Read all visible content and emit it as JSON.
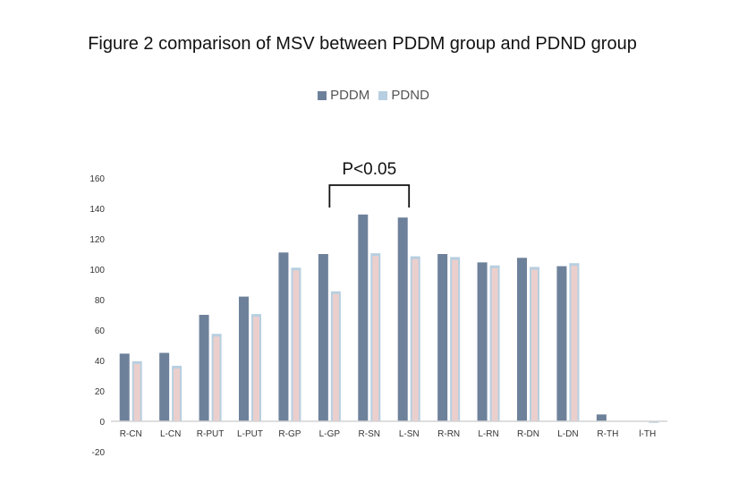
{
  "chart_data": {
    "type": "bar",
    "title": "Figure 2 comparison of MSV between PDDM group and PDND group",
    "categories": [
      "R-CN",
      "L-CN",
      "R-PUT",
      "L-PUT",
      "R-GP",
      "L-GP",
      "R-SN",
      "L-SN",
      "R-RN",
      "L-RN",
      "R-DN",
      "L-DN",
      "R-TH",
      "l-TH"
    ],
    "series": [
      {
        "name": "PDDM",
        "color": "#6e819b",
        "values": [
          44.5,
          45,
          70,
          82,
          111,
          110,
          136,
          134,
          110,
          104.5,
          107.5,
          102,
          4.5,
          0
        ]
      },
      {
        "name": "PDND",
        "color": "#b7cfe0",
        "inner_color": "#ebcfcd",
        "values": [
          39.5,
          36.5,
          57.5,
          70.5,
          101,
          85.5,
          110.5,
          108.5,
          108,
          102.5,
          101.5,
          104,
          0,
          -1
        ]
      }
    ],
    "ylim": [
      -20,
      160
    ],
    "yticks": [
      -20,
      0,
      20,
      40,
      60,
      80,
      100,
      120,
      140,
      160
    ],
    "xlabel": "",
    "ylabel": "",
    "legend_position": "top-center",
    "annotation": {
      "text": "P<0.05",
      "from_category": "L-GP",
      "to_category": "L-SN"
    }
  }
}
